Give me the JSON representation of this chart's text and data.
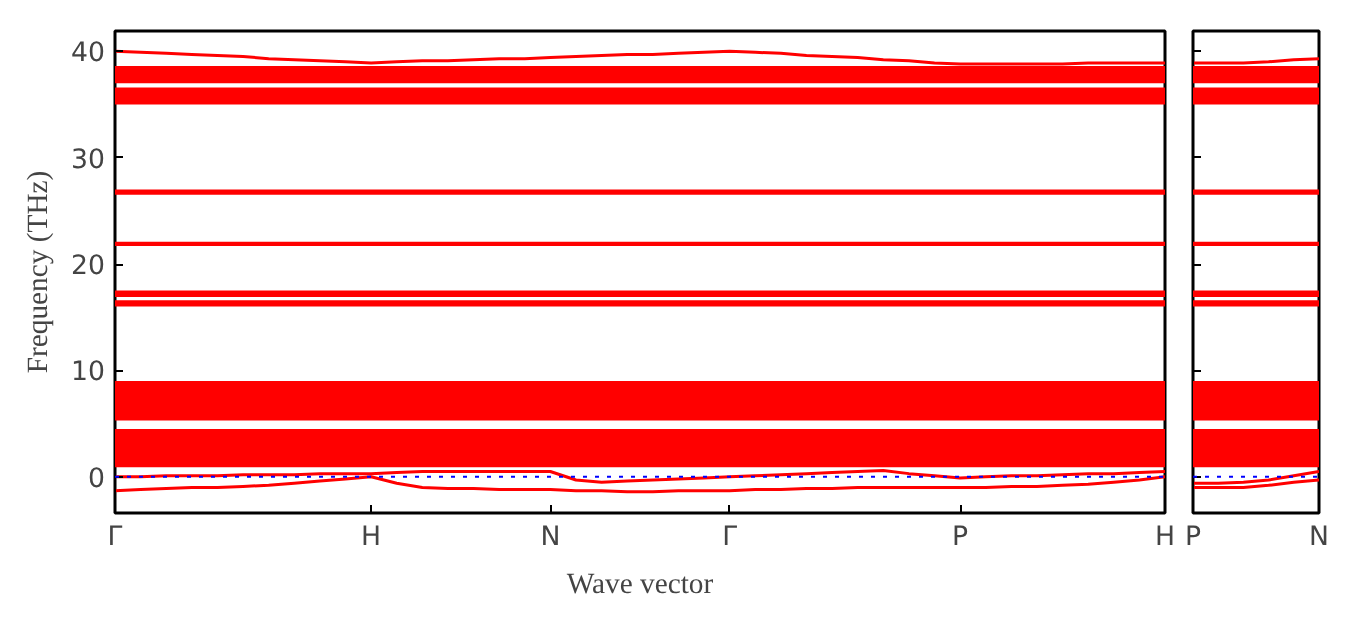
{
  "chart_data": [
    {
      "type": "line",
      "xlabel": "Wave vector",
      "ylabel": "Frequency (THz)",
      "ylim": [
        -3.4,
        41.9
      ],
      "categories": [
        "Γ",
        null,
        null,
        null,
        null,
        null,
        null,
        null,
        null,
        null,
        "H",
        null,
        null,
        null,
        null,
        null,
        null,
        "N",
        null,
        null,
        null,
        null,
        null,
        null,
        "Γ",
        null,
        null,
        null,
        null,
        null,
        null,
        null,
        null,
        "P",
        null,
        null,
        null,
        null,
        null,
        null,
        null,
        "H"
      ],
      "yticks": [
        0,
        10,
        20,
        30,
        40
      ],
      "grid": false,
      "line_style": "solid",
      "marker": "none",
      "series": [
        {
          "color": "#ff0000",
          "values": [
            40,
            39.9,
            39.8,
            39.7,
            39.6,
            39.5,
            39.3,
            39.2,
            39.1,
            39.0,
            38.9,
            39.0,
            39.1,
            39.1,
            39.2,
            39.3,
            39.3,
            39.4,
            39.5,
            39.6,
            39.7,
            39.7,
            39.8,
            39.9,
            40.0,
            39.9,
            39.8,
            39.6,
            39.5,
            39.4,
            39.2,
            39.1,
            38.9,
            38.8,
            38.8,
            38.8,
            38.8,
            38.8,
            38.9,
            38.9,
            38.9,
            38.9
          ]
        },
        {
          "color": "#ff0000",
          "values": [
            -1.3,
            -1.2,
            -1.1,
            -1.0,
            -1.0,
            -0.9,
            -0.8,
            -0.6,
            -0.4,
            -0.2,
            0,
            -0.6,
            -1.0,
            -1.1,
            -1.1,
            -1.2,
            -1.2,
            -1.2,
            -1.3,
            -1.3,
            -1.4,
            -1.4,
            -1.3,
            -1.3,
            -1.3,
            -1.2,
            -1.2,
            -1.1,
            -1.1,
            -1.0,
            -1.0,
            -1.0,
            -1.0,
            -1.0,
            -1.0,
            -0.9,
            -0.9,
            -0.8,
            -0.7,
            -0.5,
            -0.3,
            0
          ]
        },
        {
          "color": "#ff0000",
          "values": [
            0,
            0,
            0.1,
            0.1,
            0.1,
            0.2,
            0.2,
            0.2,
            0.3,
            0.3,
            0.3,
            0.4,
            0.5,
            0.5,
            0.5,
            0.5,
            0.5,
            0.5,
            -0.3,
            -0.5,
            -0.4,
            -0.3,
            -0.2,
            -0.1,
            0,
            0.1,
            0.2,
            0.3,
            0.4,
            0.5,
            0.6,
            0.3,
            0.1,
            -0.1,
            0,
            0.1,
            0.1,
            0.2,
            0.3,
            0.3,
            0.4,
            0.5
          ]
        }
      ],
      "bands": [
        {
          "axis": "y",
          "from": 35.0,
          "to": 36.6,
          "color": "#ff0000"
        },
        {
          "axis": "y",
          "from": 37.0,
          "to": 38.6,
          "color": "#ff0000"
        },
        {
          "axis": "y",
          "from": 26.5,
          "to": 27.0,
          "color": "#ff0000"
        },
        {
          "axis": "y",
          "from": 21.7,
          "to": 22.1,
          "color": "#ff0000"
        },
        {
          "axis": "y",
          "from": 16.0,
          "to": 16.6,
          "color": "#ff0000"
        },
        {
          "axis": "y",
          "from": 16.9,
          "to": 17.5,
          "color": "#ff0000"
        },
        {
          "axis": "y",
          "from": 5.3,
          "to": 9.0,
          "color": "#ff0000"
        },
        {
          "axis": "y",
          "from": 0.9,
          "to": 4.5,
          "color": "#ff0000"
        }
      ],
      "ref_lines": [
        {
          "axis": "y",
          "value": 0,
          "color": "#0000ff",
          "line_style": "dotted"
        }
      ]
    },
    {
      "type": "line",
      "ylim": [
        -3.4,
        41.9
      ],
      "categories": [
        "P",
        null,
        null,
        null,
        null,
        "N"
      ],
      "yticks": [
        {
          "value": 0,
          "label": null
        },
        {
          "value": 10,
          "label": null
        },
        {
          "value": 20,
          "label": null
        },
        {
          "value": 30,
          "label": null
        },
        {
          "value": 40,
          "label": null
        }
      ],
      "tick_labels": "x",
      "grid": false,
      "line_style": "solid",
      "marker": "none",
      "series": [
        {
          "color": "#ff0000",
          "values": [
            38.9,
            38.9,
            38.9,
            39.0,
            39.2,
            39.3
          ]
        },
        {
          "color": "#ff0000",
          "values": [
            -1.0,
            -1.0,
            -1.0,
            -0.8,
            -0.5,
            -0.3
          ]
        },
        {
          "color": "#ff0000",
          "values": [
            -0.6,
            -0.6,
            -0.5,
            -0.3,
            0.1,
            0.5
          ]
        }
      ],
      "bands": [
        {
          "axis": "y",
          "from": 35.0,
          "to": 36.6,
          "color": "#ff0000"
        },
        {
          "axis": "y",
          "from": 37.0,
          "to": 38.6,
          "color": "#ff0000"
        },
        {
          "axis": "y",
          "from": 26.5,
          "to": 27.0,
          "color": "#ff0000"
        },
        {
          "axis": "y",
          "from": 21.7,
          "to": 22.1,
          "color": "#ff0000"
        },
        {
          "axis": "y",
          "from": 16.0,
          "to": 16.6,
          "color": "#ff0000"
        },
        {
          "axis": "y",
          "from": 16.9,
          "to": 17.5,
          "color": "#ff0000"
        },
        {
          "axis": "y",
          "from": 5.3,
          "to": 9.0,
          "color": "#ff0000"
        },
        {
          "axis": "y",
          "from": 0.9,
          "to": 4.5,
          "color": "#ff0000"
        }
      ],
      "ref_lines": [
        {
          "axis": "y",
          "value": 0,
          "color": "#0000ff",
          "line_style": "dotted"
        }
      ]
    }
  ]
}
